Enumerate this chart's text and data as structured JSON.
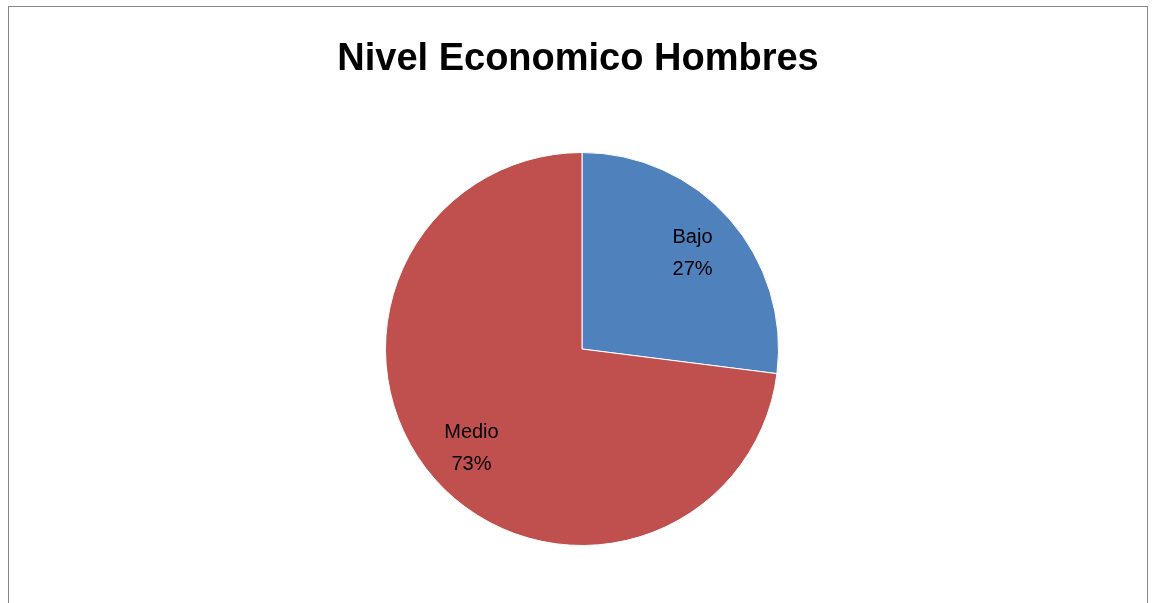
{
  "chart_data": {
    "type": "pie",
    "title": "Nivel Economico Hombres",
    "categories": [
      "Bajo",
      "Medio"
    ],
    "values": [
      27,
      73
    ],
    "colors": [
      "#4f81bd",
      "#c0504d"
    ],
    "value_labels": [
      "27%",
      "73%"
    ]
  }
}
